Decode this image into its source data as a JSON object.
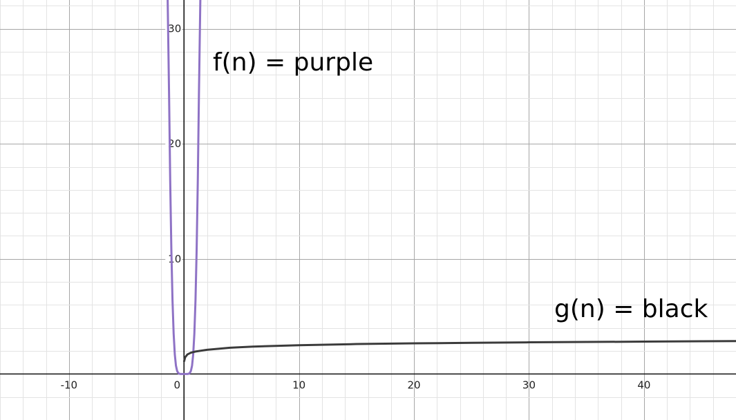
{
  "chart_data": {
    "type": "line",
    "title": "",
    "xlabel": "",
    "ylabel": "",
    "xlim": [
      -16,
      48
    ],
    "ylim": [
      -4,
      32.5
    ],
    "grid": true,
    "x_ticks": [
      "-10",
      "0",
      "10",
      "20",
      "30",
      "40"
    ],
    "y_ticks": [
      "10",
      "20",
      "30"
    ],
    "annotations": [
      "f(n) = purple",
      "g(n) = black"
    ],
    "series": [
      {
        "color": "#8e72c5",
        "x": [
          -1.42,
          -1.3,
          -1.2,
          -1.1,
          -1.0,
          -0.9,
          -0.8,
          -0.7,
          -0.6,
          -0.5,
          -0.4,
          -0.3,
          -0.2,
          -0.1,
          0.0,
          0.1,
          0.2,
          0.3,
          0.4,
          0.5,
          0.6,
          0.7,
          0.8,
          0.9,
          1.0,
          1.1,
          1.2,
          1.3,
          1.42
        ],
        "y": [
          32.5,
          24.4,
          16.8,
          10.8,
          6.4,
          3.5,
          1.7,
          0.72,
          0.27,
          0.08,
          0.02,
          0.0,
          0.0,
          0.0,
          0.0,
          0.0,
          0.0,
          0.0,
          0.02,
          0.08,
          0.27,
          0.72,
          1.7,
          3.5,
          6.4,
          10.8,
          16.8,
          24.4,
          32.5
        ]
      },
      {
        "color": "#3b3b3b",
        "x": [
          0.01,
          0.1,
          0.3,
          0.6,
          1,
          2,
          4,
          6,
          10,
          15,
          20,
          25,
          30,
          35,
          40,
          45,
          48
        ],
        "y": [
          1.1,
          1.45,
          1.7,
          1.85,
          1.95,
          2.1,
          2.28,
          2.38,
          2.5,
          2.6,
          2.66,
          2.71,
          2.75,
          2.78,
          2.81,
          2.84,
          2.86
        ]
      }
    ]
  }
}
